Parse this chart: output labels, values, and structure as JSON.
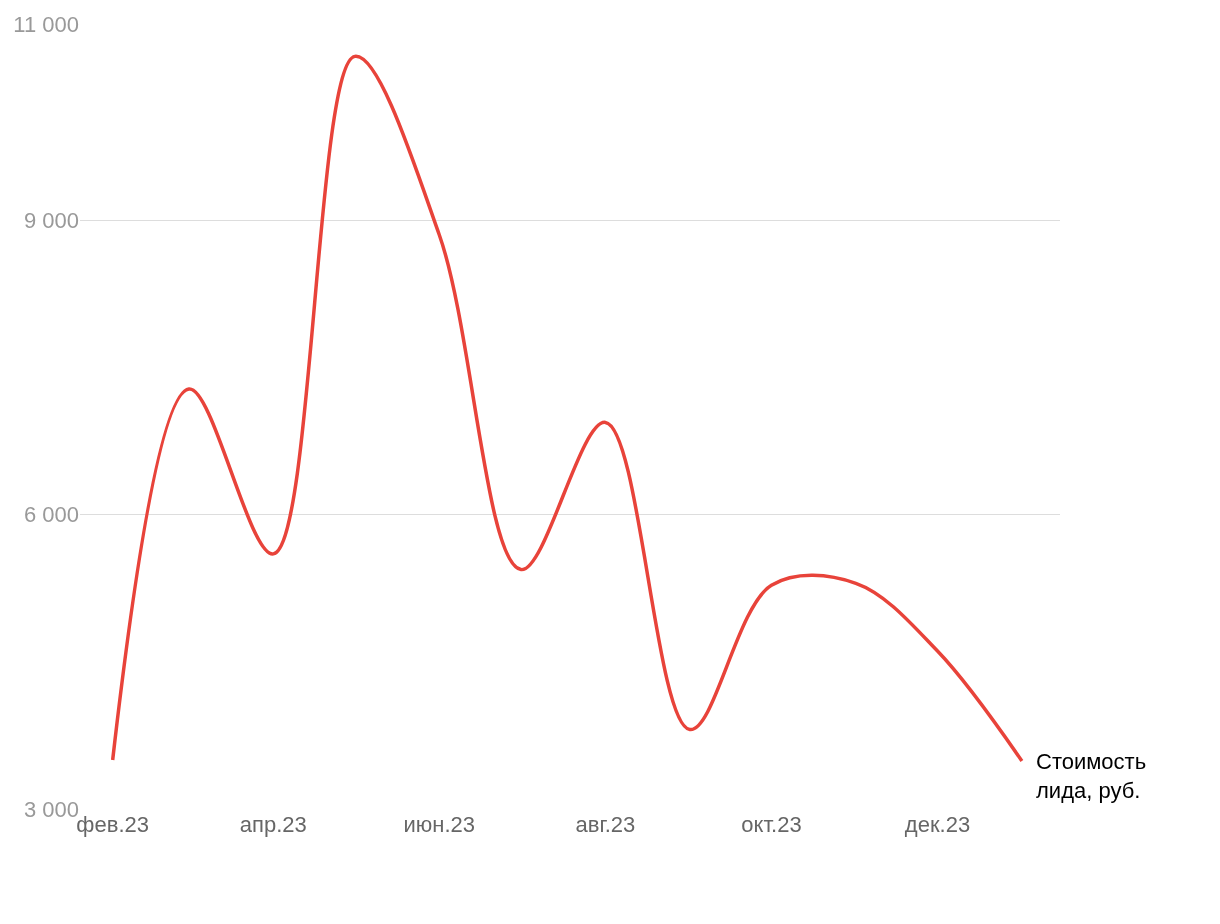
{
  "chart_data": {
    "type": "line",
    "x": [
      "2023-02",
      "2023-03",
      "2023-04",
      "2023-05",
      "2023-06",
      "2023-07",
      "2023-08",
      "2023-09",
      "2023-10",
      "2023-11",
      "2023-12",
      "2024-01"
    ],
    "series": [
      {
        "name": "Стоимость лида, руб.",
        "color": "#e8433a",
        "values": [
          3500,
          7280,
          5600,
          10670,
          8850,
          5440,
          6940,
          3810,
          5280,
          5300,
          4610,
          3490
        ]
      }
    ],
    "xlim": [
      "2023-01-20",
      "2024-01-15"
    ],
    "xticks": [
      {
        "value": "2023-02",
        "label": "фев.23"
      },
      {
        "value": "2023-04",
        "label": "апр.23"
      },
      {
        "value": "2023-06",
        "label": "июн.23"
      },
      {
        "value": "2023-08",
        "label": "авг.23"
      },
      {
        "value": "2023-10",
        "label": "окт.23"
      },
      {
        "value": "2023-12",
        "label": "дек.23"
      }
    ],
    "ylim": [
      3000,
      11000
    ],
    "yticks": [
      3000,
      6000,
      9000,
      11000
    ],
    "grid": "y",
    "legend": false,
    "marker": "none",
    "line_style": "solid"
  }
}
